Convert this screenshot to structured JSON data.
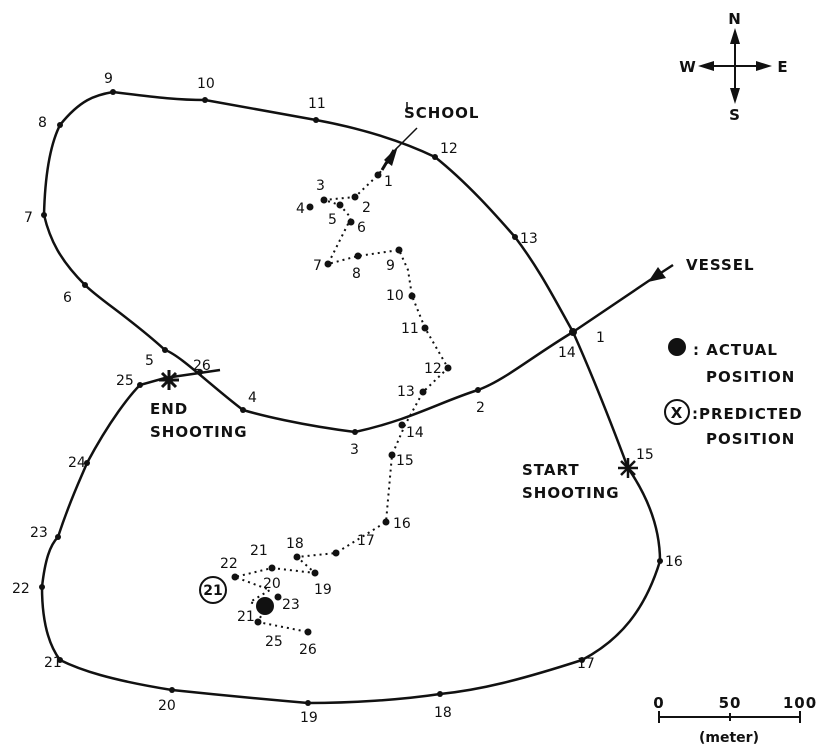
{
  "compass": {
    "n": "N",
    "s": "S",
    "e": "E",
    "w": "W"
  },
  "labels": {
    "school": "SCHOOL",
    "vessel": "VESSEL",
    "end_line1": "END",
    "end_line2": "SHOOTING",
    "start_line1": "START",
    "start_line2": "SHOOTING"
  },
  "legend": {
    "actual_symbol": "●",
    "actual_line1": ": ACTUAL",
    "actual_line2": "POSITION",
    "predicted_symbol": "X",
    "predicted_line1": ":PREDICTED",
    "predicted_line2": "POSITION"
  },
  "scale": {
    "ticks": [
      "0",
      "50",
      "100"
    ],
    "unit": "(meter)"
  },
  "vessel_track": {
    "marks": [
      "1",
      "2",
      "3",
      "4",
      "5",
      "6",
      "7",
      "8",
      "9",
      "10",
      "11",
      "12",
      "13",
      "14",
      "15",
      "16",
      "17",
      "18",
      "19",
      "20",
      "21",
      "22",
      "23",
      "24",
      "25",
      "26"
    ]
  },
  "school_track": {
    "marks": [
      "1",
      "2",
      "3",
      "4",
      "5",
      "6",
      "7",
      "8",
      "9",
      "10",
      "11",
      "12",
      "13",
      "14",
      "15",
      "16",
      "17",
      "18",
      "19",
      "20",
      "21",
      "22",
      "23",
      "25",
      "26"
    ],
    "predicted_mark": "21",
    "actual_mark": "21"
  }
}
